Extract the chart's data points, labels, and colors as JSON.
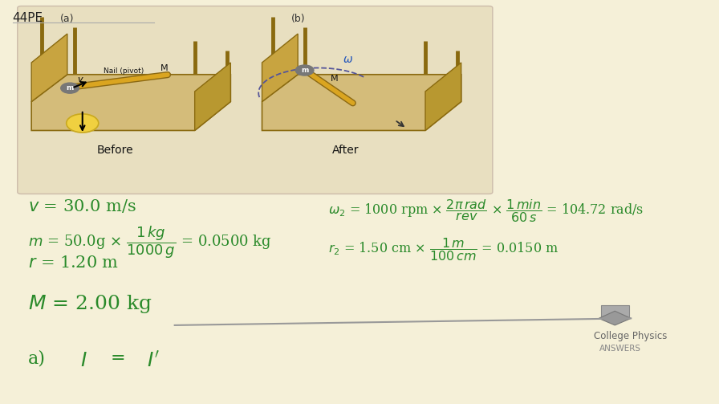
{
  "bg_color": "#f5f0d8",
  "title_text": "44PE",
  "title_color": "#222222",
  "title_fontsize": 11,
  "green_color": "#2a8a2a",
  "logo_text_line1": "College Physics",
  "logo_text_line2": "ANSWERS",
  "table_color": "#d4bc7a",
  "dark_edge": "#8a6a10",
  "diagram_bg": "#e8e0c0"
}
